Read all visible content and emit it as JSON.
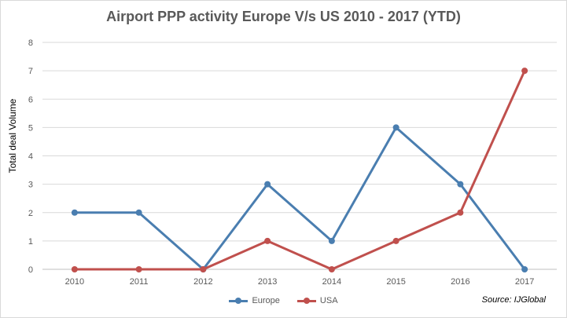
{
  "chart_data": {
    "type": "line",
    "title": "Airport PPP activity Europe V/s US 2010 - 2017 (YTD)",
    "xlabel": "",
    "ylabel": "Total deal Volume",
    "categories": [
      "2010",
      "2011",
      "2012",
      "2013",
      "2014",
      "2015",
      "2016",
      "2017"
    ],
    "ylim": [
      0,
      8
    ],
    "yticks": [
      0,
      1,
      2,
      3,
      4,
      5,
      6,
      7,
      8
    ],
    "grid": true,
    "legend_position": "bottom",
    "series": [
      {
        "name": "Europe",
        "color": "#4a7eb0",
        "values": [
          2,
          2,
          0,
          3,
          1,
          5,
          3,
          0
        ]
      },
      {
        "name": "USA",
        "color": "#c0504d",
        "values": [
          0,
          0,
          0,
          1,
          0,
          1,
          2,
          7
        ]
      }
    ]
  },
  "source_note": "Source:  IJGlobal"
}
